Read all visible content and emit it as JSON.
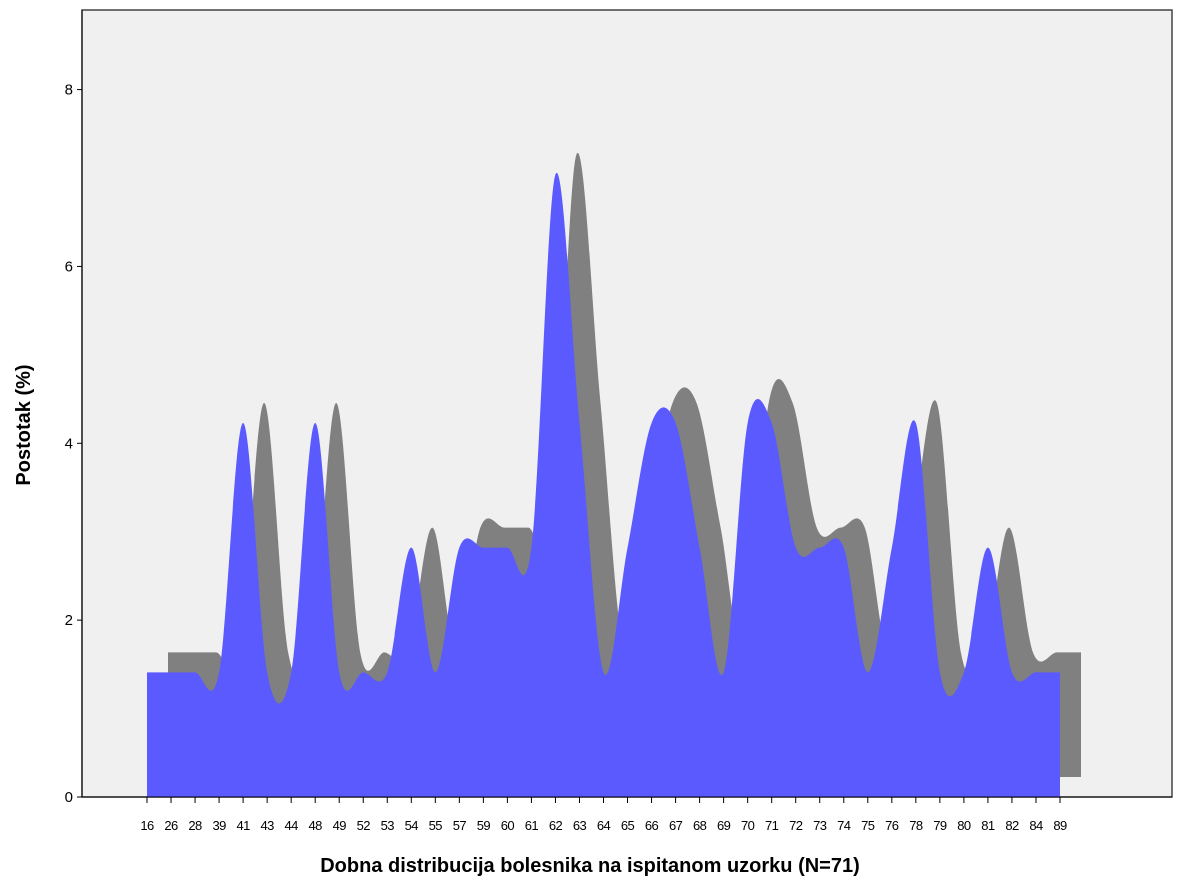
{
  "chart_data": {
    "type": "area",
    "x_label": "Dobna distribucija bolesnika na ispitanom uzorku (N=71)",
    "y_label": "Postotak (%)",
    "categories": [
      "16",
      "26",
      "28",
      "39",
      "41",
      "43",
      "44",
      "48",
      "49",
      "52",
      "53",
      "54",
      "55",
      "57",
      "59",
      "60",
      "61",
      "62",
      "63",
      "64",
      "65",
      "66",
      "67",
      "68",
      "69",
      "70",
      "71",
      "72",
      "73",
      "74",
      "75",
      "76",
      "78",
      "79",
      "80",
      "81",
      "82",
      "84",
      "89"
    ],
    "values": [
      1.41,
      1.41,
      1.41,
      1.41,
      4.23,
      1.41,
      1.41,
      4.23,
      1.41,
      1.41,
      1.41,
      2.82,
      1.41,
      2.82,
      2.82,
      2.82,
      2.82,
      7.04,
      4.23,
      1.41,
      2.82,
      4.23,
      4.23,
      2.82,
      1.41,
      4.23,
      4.23,
      2.82,
      2.82,
      2.82,
      1.41,
      2.82,
      4.23,
      1.41,
      1.41,
      2.82,
      1.41,
      1.41,
      1.41
    ],
    "color": "#5a5aff",
    "shadow_color": "#808080",
    "ylim": [
      0,
      8.9
    ],
    "yticks": [
      0,
      2,
      4,
      6,
      8
    ]
  }
}
